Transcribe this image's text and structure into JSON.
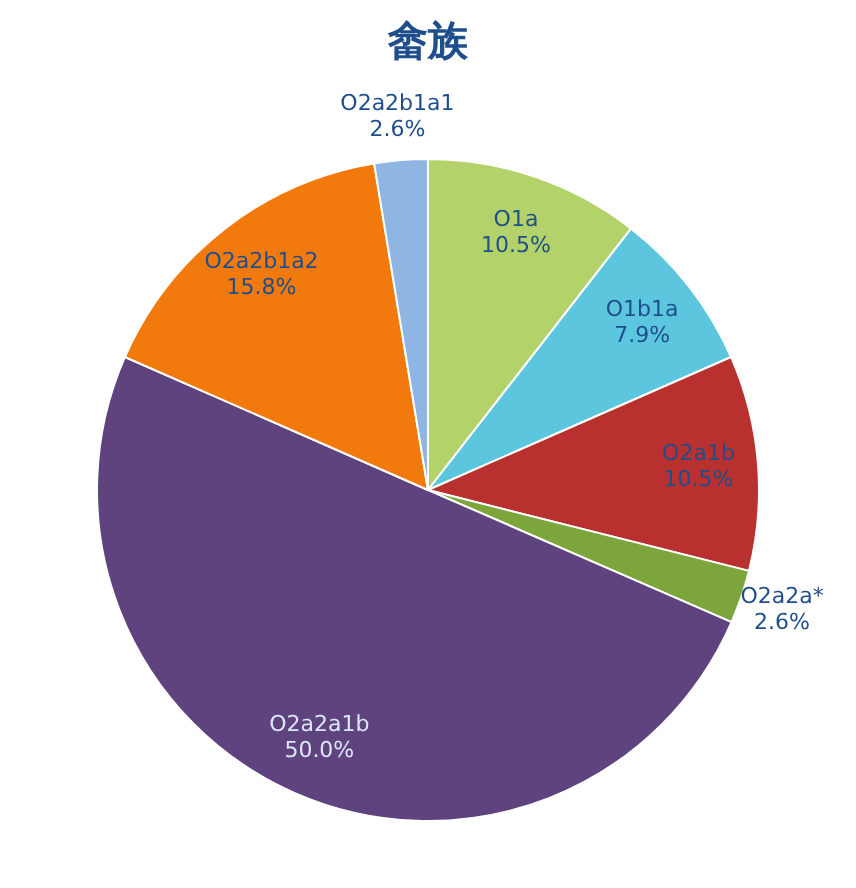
{
  "chart_data": {
    "type": "pie",
    "title": "畲族",
    "categories": [
      "O1a",
      "O1b1a",
      "O2a1b",
      "O2a2a*",
      "O2a2a1b",
      "O2a2b1a2",
      "O2a2b1a1"
    ],
    "values": [
      10.5,
      7.9,
      10.5,
      2.6,
      50.0,
      15.8,
      2.6
    ],
    "colors": [
      "#b3d36a",
      "#5cc6df",
      "#b8312f",
      "#7ca63b",
      "#5e437f",
      "#f27a0c",
      "#8fb5e3"
    ],
    "value_labels": [
      "10.5%",
      "7.9%",
      "10.5%",
      "2.6%",
      "50.0%",
      "15.8%",
      "2.6%"
    ],
    "legend": false
  }
}
